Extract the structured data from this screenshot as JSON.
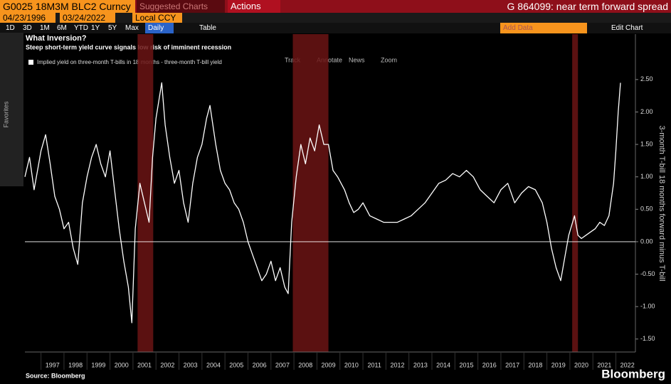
{
  "ui": {
    "ticker": "G0025 18M3M BLC2 Curncy",
    "suggested": "Suggested Charts",
    "actions": "Actions",
    "chart_name": "G 864099: near term forward spread",
    "start_date": "04/23/1996",
    "end_date": "03/24/2022",
    "currency": "Local CCY",
    "periods": [
      "1D",
      "3D",
      "1M",
      "6M",
      "YTD",
      "1Y",
      "5Y",
      "Max"
    ],
    "frequency": "Daily",
    "table": "Table",
    "add_data": "Add Data",
    "edit_chart": "Edit Chart",
    "favorites": "Favorites",
    "tools": [
      "Track",
      "Annotate",
      "News",
      "Zoom"
    ],
    "source": "Source: Bloomberg",
    "logo": "Bloomberg"
  },
  "chart_data": {
    "type": "line",
    "title": "What Inversion?",
    "subtitle": "Steep short-term yield curve signals low risk of imminent recession",
    "y_label": "3-month T-bill 18 months forward minus T-bill",
    "xlim": [
      1996.3,
      2022.85
    ],
    "xticks": [
      1997,
      1998,
      1999,
      2000,
      2001,
      2002,
      2003,
      2004,
      2005,
      2006,
      2007,
      2008,
      2009,
      2010,
      2011,
      2012,
      2013,
      2014,
      2015,
      2016,
      2017,
      2018,
      2019,
      2020,
      2021,
      2022
    ],
    "ylim": [
      -1.7,
      3.2
    ],
    "yticks": [
      {
        "value": 2.5,
        "label": "2.50"
      },
      {
        "value": 2,
        "label": "2.00"
      },
      {
        "value": 1.5,
        "label": "1.50"
      },
      {
        "value": 1,
        "label": "1.00"
      },
      {
        "value": 0.5,
        "label": "0.50"
      },
      {
        "value": 0,
        "label": "0.00"
      },
      {
        "value": -0.5,
        "label": "-0.50"
      },
      {
        "value": -1,
        "label": "-1.00"
      },
      {
        "value": -1.5,
        "label": "-1.50"
      }
    ],
    "zero_line": true,
    "recessions": [
      [
        2001.2,
        2001.88
      ],
      [
        2007.95,
        2009.5
      ],
      [
        2020.1,
        2020.35
      ]
    ],
    "recession_color": "#6b1414",
    "series": [
      {
        "name": "Implied yield on three-month T-bills in 18 months - three-month T-bill yield",
        "color": "#ffffff",
        "x": [
          1996.3,
          1996.5,
          1996.7,
          1996.9,
          1997.0,
          1997.2,
          1997.4,
          1997.6,
          1997.8,
          1998.0,
          1998.2,
          1998.4,
          1998.6,
          1998.8,
          1999.0,
          1999.2,
          1999.4,
          1999.6,
          1999.8,
          2000.0,
          2000.2,
          2000.4,
          2000.6,
          2000.8,
          2000.95,
          2001.1,
          2001.3,
          2001.5,
          2001.7,
          2001.85,
          2002.0,
          2002.25,
          2002.4,
          2002.6,
          2002.8,
          2003.0,
          2003.2,
          2003.4,
          2003.6,
          2003.8,
          2004.0,
          2004.2,
          2004.35,
          2004.6,
          2004.8,
          2005.0,
          2005.2,
          2005.4,
          2005.6,
          2005.8,
          2006.0,
          2006.2,
          2006.4,
          2006.6,
          2006.8,
          2007.0,
          2007.2,
          2007.4,
          2007.6,
          2007.75,
          2007.9,
          2008.1,
          2008.3,
          2008.5,
          2008.7,
          2008.9,
          2009.1,
          2009.3,
          2009.5,
          2009.7,
          2009.9,
          2010.2,
          2010.4,
          2010.6,
          2010.8,
          2011.0,
          2011.3,
          2011.6,
          2011.9,
          2012.2,
          2012.5,
          2012.8,
          2013.1,
          2013.4,
          2013.7,
          2014.0,
          2014.3,
          2014.6,
          2014.9,
          2015.2,
          2015.5,
          2015.8,
          2016.1,
          2016.4,
          2016.7,
          2017.0,
          2017.3,
          2017.6,
          2017.9,
          2018.2,
          2018.5,
          2018.8,
          2019.0,
          2019.2,
          2019.4,
          2019.6,
          2019.8,
          2019.95,
          2020.2,
          2020.35,
          2020.5,
          2020.7,
          2020.9,
          2021.1,
          2021.3,
          2021.5,
          2021.7,
          2021.9,
          2022.0,
          2022.1,
          2022.2
        ],
        "values": [
          1.0,
          1.3,
          0.8,
          1.2,
          1.4,
          1.65,
          1.2,
          0.7,
          0.5,
          0.2,
          0.3,
          -0.1,
          -0.35,
          0.6,
          1.0,
          1.3,
          1.5,
          1.2,
          1.0,
          1.4,
          0.8,
          0.2,
          -0.3,
          -0.7,
          -1.25,
          0.2,
          0.9,
          0.6,
          0.3,
          1.3,
          1.9,
          2.45,
          1.8,
          1.3,
          0.9,
          1.1,
          0.6,
          0.3,
          0.9,
          1.3,
          1.5,
          1.9,
          2.1,
          1.5,
          1.1,
          0.9,
          0.8,
          0.6,
          0.5,
          0.3,
          0.0,
          -0.2,
          -0.4,
          -0.6,
          -0.5,
          -0.3,
          -0.6,
          -0.4,
          -0.7,
          -0.8,
          0.3,
          1.0,
          1.5,
          1.2,
          1.6,
          1.4,
          1.8,
          1.5,
          1.5,
          1.1,
          1.0,
          0.8,
          0.6,
          0.45,
          0.5,
          0.6,
          0.4,
          0.35,
          0.3,
          0.3,
          0.3,
          0.35,
          0.4,
          0.5,
          0.6,
          0.75,
          0.9,
          0.95,
          1.05,
          1.0,
          1.1,
          1.0,
          0.8,
          0.7,
          0.6,
          0.8,
          0.9,
          0.6,
          0.75,
          0.85,
          0.8,
          0.6,
          0.3,
          -0.1,
          -0.4,
          -0.6,
          -0.2,
          0.1,
          0.4,
          0.1,
          0.05,
          0.1,
          0.15,
          0.2,
          0.3,
          0.25,
          0.4,
          0.9,
          1.4,
          2.0,
          2.45
        ]
      }
    ]
  }
}
